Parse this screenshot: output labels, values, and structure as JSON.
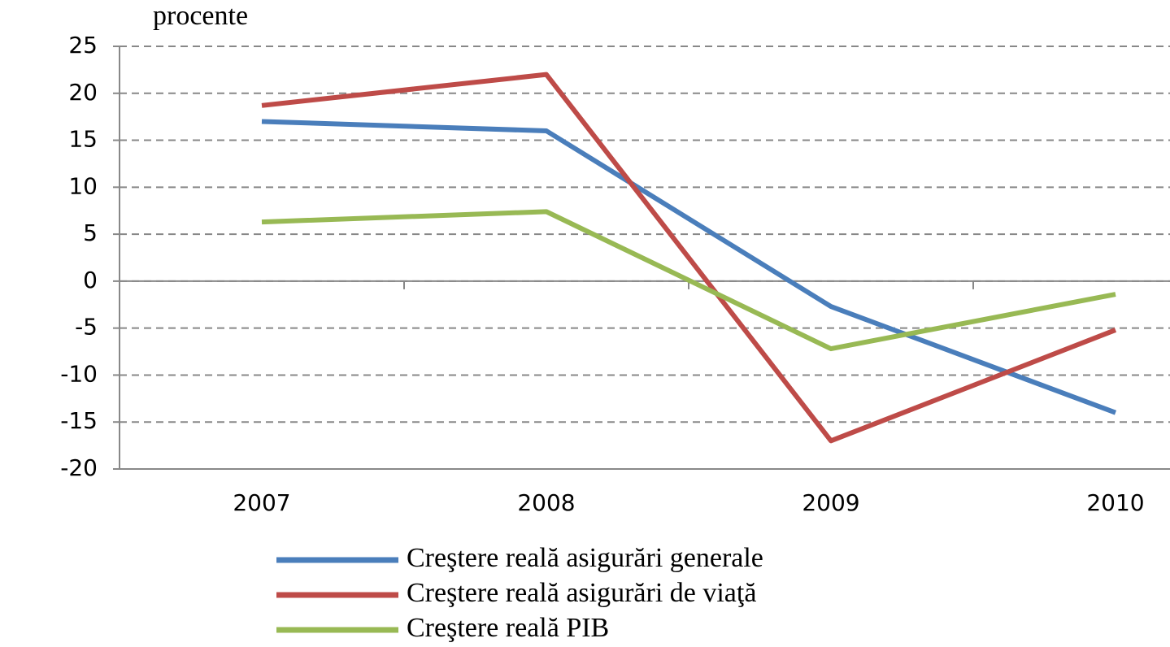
{
  "chart_data": {
    "type": "line",
    "y_label": "procente",
    "categories": [
      "2007",
      "2008",
      "2009",
      "2010"
    ],
    "series": [
      {
        "name": "Creştere reală asigurări generale",
        "color": "#4a7ebb",
        "values": [
          17,
          16,
          -2.7,
          -14
        ]
      },
      {
        "name": "Creştere reală asigurări de viaţă",
        "color": "#be4b48",
        "values": [
          18.7,
          22,
          -17,
          -5.2
        ]
      },
      {
        "name": "Creştere reală PIB",
        "color": "#98b954",
        "values": [
          6.3,
          7.4,
          -7.2,
          -1.4
        ]
      }
    ],
    "ylim": [
      -20,
      25
    ],
    "yticks": [
      -20,
      -15,
      -10,
      -5,
      0,
      5,
      10,
      15,
      20,
      25
    ],
    "grid": true,
    "legend": "bottom"
  }
}
